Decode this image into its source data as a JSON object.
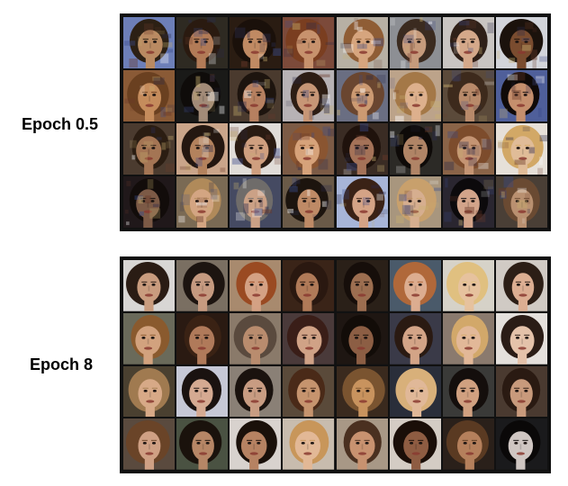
{
  "panels": [
    {
      "label": "Epoch 0.5",
      "rows": 4,
      "cols": 8,
      "style": "noisy",
      "tiles": [
        {
          "bg": "#6d7fb8",
          "skin": "#b98a62",
          "hair": "#2c2014"
        },
        {
          "bg": "#2e2a22",
          "skin": "#b27b57",
          "hair": "#2a1a10"
        },
        {
          "bg": "#2a1c12",
          "skin": "#c08a63",
          "hair": "#1a100a"
        },
        {
          "bg": "#7c4a3a",
          "skin": "#c7926d",
          "hair": "#7a3e20"
        },
        {
          "bg": "#b7b0a4",
          "skin": "#d6a57e",
          "hair": "#8f5d35"
        },
        {
          "bg": "#8d8f94",
          "skin": "#c69b7c",
          "hair": "#3b2b20"
        },
        {
          "bg": "#c9c5c2",
          "skin": "#d4a88a",
          "hair": "#2f2018"
        },
        {
          "bg": "#d2d4da",
          "skin": "#7a4c2f",
          "hair": "#1b120c"
        },
        {
          "bg": "#8a5a36",
          "skin": "#c58c5c",
          "hair": "#6a4020"
        },
        {
          "bg": "#1a1a18",
          "skin": "#a28b78",
          "hair": "#0f0c0a"
        },
        {
          "bg": "#4a3a2e",
          "skin": "#b68060",
          "hair": "#1d140e"
        },
        {
          "bg": "#b7b2b5",
          "skin": "#c79676",
          "hair": "#2d1d14"
        },
        {
          "bg": "#6a6e82",
          "skin": "#cc9a72",
          "hair": "#6a4630"
        },
        {
          "bg": "#bca38a",
          "skin": "#ddb08d",
          "hair": "#a47847"
        },
        {
          "bg": "#5b4a3a",
          "skin": "#b88a6a",
          "hair": "#3d2a1c"
        },
        {
          "bg": "#4f5f9a",
          "skin": "#c58f6d",
          "hair": "#100a08"
        },
        {
          "bg": "#4b3b2f",
          "skin": "#a47554",
          "hair": "#2b1d12"
        },
        {
          "bg": "#caa58a",
          "skin": "#b3825d",
          "hair": "#241710"
        },
        {
          "bg": "#e0dcd8",
          "skin": "#cf9f7f",
          "hair": "#2a1b12"
        },
        {
          "bg": "#7c5b46",
          "skin": "#d6a27a",
          "hair": "#8a5531"
        },
        {
          "bg": "#3a2c24",
          "skin": "#a47258",
          "hair": "#1f120c"
        },
        {
          "bg": "#2c2a26",
          "skin": "#b08466",
          "hair": "#0e0a08"
        },
        {
          "bg": "#8a6448",
          "skin": "#c49473",
          "hair": "#7d4c2c"
        },
        {
          "bg": "#e6e0d8",
          "skin": "#e0bc98",
          "hair": "#d2a866"
        },
        {
          "bg": "#20181a",
          "skin": "#7c5a46",
          "hair": "#120c0a"
        },
        {
          "bg": "#7a6a54",
          "skin": "#d3a582",
          "hair": "#b08a5a"
        },
        {
          "bg": "#454a62",
          "skin": "#cba186",
          "hair": "#6f6c6a"
        },
        {
          "bg": "#6a5a48",
          "skin": "#be8a66",
          "hair": "#1c140e"
        },
        {
          "bg": "#a7b5d8",
          "skin": "#d4a386",
          "hair": "#3a2216"
        },
        {
          "bg": "#a8967e",
          "skin": "#d6ae8f",
          "hair": "#c8a06c"
        },
        {
          "bg": "#2a2630",
          "skin": "#d2a48a",
          "hair": "#0c0a0c"
        },
        {
          "bg": "#4a3f36",
          "skin": "#b99070",
          "hair": "#6a4a32"
        }
      ]
    },
    {
      "label": "Epoch 8",
      "rows": 4,
      "cols": 8,
      "style": "clean",
      "tiles": [
        {
          "bg": "#d8d6d4",
          "skin": "#c99c7e",
          "hair": "#2a1c14"
        },
        {
          "bg": "#7a6f62",
          "skin": "#c59a80",
          "hair": "#1c1410"
        },
        {
          "bg": "#a88a6e",
          "skin": "#d4a184",
          "hair": "#9a4a22"
        },
        {
          "bg": "#3a2418",
          "skin": "#b07a58",
          "hair": "#2a1810"
        },
        {
          "bg": "#2a2018",
          "skin": "#9c6e50",
          "hair": "#160e0a"
        },
        {
          "bg": "#4a5a6a",
          "skin": "#dcad90",
          "hair": "#b0683a"
        },
        {
          "bg": "#d6d2c8",
          "skin": "#e6c29e",
          "hair": "#e0c080"
        },
        {
          "bg": "#d0cac4",
          "skin": "#dcae92",
          "hair": "#2c1e16"
        },
        {
          "bg": "#6a6a5a",
          "skin": "#d2a27e",
          "hair": "#8a5a2e"
        },
        {
          "bg": "#2a1a12",
          "skin": "#b07a5a",
          "hair": "#3a2214"
        },
        {
          "bg": "#8a7a6a",
          "skin": "#b98c6e",
          "hair": "#5a4a3e"
        },
        {
          "bg": "#4a3a3a",
          "skin": "#d0a286",
          "hair": "#3a1e18"
        },
        {
          "bg": "#1e1612",
          "skin": "#8c5e44",
          "hair": "#120c08"
        },
        {
          "bg": "#3a3a48",
          "skin": "#d3a487",
          "hair": "#2a1a12"
        },
        {
          "bg": "#8a7a6e",
          "skin": "#e2b898",
          "hair": "#d2a86a"
        },
        {
          "bg": "#e4e0dc",
          "skin": "#e4c2aa",
          "hair": "#2a1c16"
        },
        {
          "bg": "#4a4030",
          "skin": "#d7a987",
          "hair": "#a07a50"
        },
        {
          "bg": "#c6c8d6",
          "skin": "#d5aa92",
          "hair": "#1a1210"
        },
        {
          "bg": "#8a8076",
          "skin": "#c89c82",
          "hair": "#1a120e"
        },
        {
          "bg": "#5a4a3a",
          "skin": "#c6946e",
          "hair": "#4a2a18"
        },
        {
          "bg": "#3a2a1e",
          "skin": "#c8935e",
          "hair": "#7a5430"
        },
        {
          "bg": "#2a2e3a",
          "skin": "#e0b898",
          "hair": "#d8b07a"
        },
        {
          "bg": "#3a3a38",
          "skin": "#d0a080",
          "hair": "#140e0c"
        },
        {
          "bg": "#4a3a30",
          "skin": "#c89a7c",
          "hair": "#2a1a12"
        },
        {
          "bg": "#5a4a3e",
          "skin": "#cfa084",
          "hair": "#6a4428"
        },
        {
          "bg": "#4a5242",
          "skin": "#b68666",
          "hair": "#1a120c"
        },
        {
          "bg": "#d8d2ce",
          "skin": "#b68262",
          "hair": "#1a100a"
        },
        {
          "bg": "#c8bcae",
          "skin": "#e2b896",
          "hair": "#c8965a"
        },
        {
          "bg": "#a89886",
          "skin": "#c89270",
          "hair": "#4a3020"
        },
        {
          "bg": "#d4ccc4",
          "skin": "#8e5c42",
          "hair": "#1a0e08"
        },
        {
          "bg": "#2a201a",
          "skin": "#b5805c",
          "hair": "#5a3a22"
        },
        {
          "bg": "#1a1a1c",
          "skin": "#cfc6c2",
          "hair": "#0a0808"
        }
      ]
    }
  ]
}
